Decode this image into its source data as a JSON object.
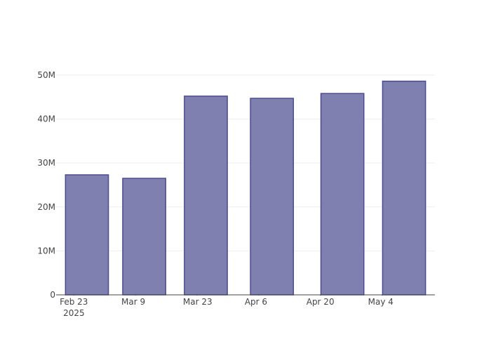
{
  "chart_data": {
    "type": "bar",
    "x": [
      "2025-02-26",
      "2025-03-11",
      "2025-03-25",
      "2025-04-09",
      "2025-04-25",
      "2025-05-09"
    ],
    "values": [
      27300000,
      26500000,
      45200000,
      44700000,
      45800000,
      48600000
    ],
    "color": "#7f7fb0",
    "edge_color": "#4b4b8f",
    "xlim": [
      "2025-02-19",
      "2025-05-16"
    ],
    "xticks": [
      {
        "value": "2025-02-23",
        "label": "Feb 23"
      },
      {
        "value": "2025-03-09",
        "label": "Mar 9"
      },
      {
        "value": "2025-03-23",
        "label": "Mar 23"
      },
      {
        "value": "2025-04-06",
        "label": "Apr 6"
      },
      {
        "value": "2025-04-20",
        "label": "Apr 20"
      },
      {
        "value": "2025-05-04",
        "label": "May 4"
      }
    ],
    "x_year_label": "2025",
    "ylim": [
      0,
      51100000
    ],
    "yticks": [
      0,
      {
        "value": 10000000,
        "label": "10M"
      },
      {
        "value": 20000000,
        "label": "20M"
      },
      {
        "value": 30000000,
        "label": "30M"
      },
      {
        "value": 40000000,
        "label": "40M"
      },
      {
        "value": 50000000,
        "label": "50M"
      }
    ],
    "grid": true
  }
}
